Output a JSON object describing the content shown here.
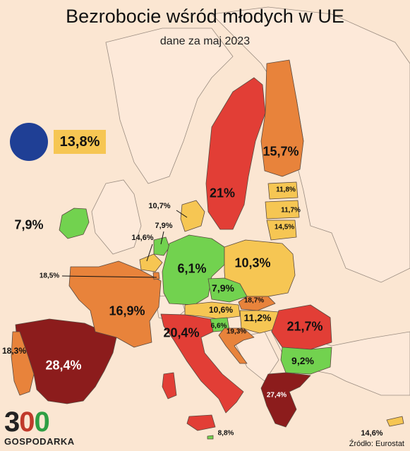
{
  "title": "Bezrobocie wśród młodych w UE",
  "subtitle": "dane za maj 2023",
  "eu": {
    "value": "13,8%"
  },
  "colors": {
    "green": "#72d24f",
    "yellow": "#f6c653",
    "orange": "#e8833b",
    "red": "#e23e36",
    "darkred": "#8c1c1c",
    "non_eu": "#fde9d9",
    "sea": "#fbe6d2",
    "eu_flag": "#1f3f95"
  },
  "countries": [
    {
      "name": "Irlandia",
      "value": "7,9%",
      "color": "green"
    },
    {
      "name": "Hiszpania",
      "value": "28,4%",
      "color": "darkred"
    },
    {
      "name": "Portugalia",
      "value": "18,3%",
      "color": "orange"
    },
    {
      "name": "Francja",
      "value": "16,9%",
      "color": "orange"
    },
    {
      "name": "Niemcy",
      "value": "6,1%",
      "color": "green"
    },
    {
      "name": "Polska",
      "value": "10,3%",
      "color": "yellow"
    },
    {
      "name": "Szwecja",
      "value": "21%",
      "color": "red"
    },
    {
      "name": "Finlandia",
      "value": "15,7%",
      "color": "orange"
    },
    {
      "name": "Dania",
      "value": "10,7%",
      "color": "yellow"
    },
    {
      "name": "Estonia",
      "value": "11,8%",
      "color": "yellow"
    },
    {
      "name": "Łotwa",
      "value": "11,7%",
      "color": "yellow"
    },
    {
      "name": "Litwa",
      "value": "14,5%",
      "color": "yellow"
    },
    {
      "name": "Holandia",
      "value": "7,9%",
      "color": "green"
    },
    {
      "name": "Belgia",
      "value": "14,6%",
      "color": "yellow"
    },
    {
      "name": "Luksemburg",
      "value": "18,5%",
      "color": "orange"
    },
    {
      "name": "Czechy",
      "value": "7,9%",
      "color": "green"
    },
    {
      "name": "Słowacja",
      "value": "18,7%",
      "color": "orange"
    },
    {
      "name": "Austria",
      "value": "10,6%",
      "color": "yellow"
    },
    {
      "name": "Węgry",
      "value": "11,2%",
      "color": "yellow"
    },
    {
      "name": "Rumunia",
      "value": "21,7%",
      "color": "red"
    },
    {
      "name": "Bułgaria",
      "value": "9,2%",
      "color": "green"
    },
    {
      "name": "Grecja",
      "value": "27,4%",
      "color": "darkred"
    },
    {
      "name": "Włochy",
      "value": "20,4%",
      "color": "red"
    },
    {
      "name": "Słowenia",
      "value": "6,6%",
      "color": "green"
    },
    {
      "name": "Chorwacja",
      "value": "19,3%",
      "color": "orange"
    },
    {
      "name": "Malta",
      "value": "8,8%",
      "color": "green"
    },
    {
      "name": "Cypr",
      "value": "14,6%",
      "color": "yellow"
    }
  ],
  "logo": {
    "digits": [
      "3",
      "0",
      "0"
    ],
    "text": "GOSPODARKA"
  },
  "source": "Źródło: Eurostat"
}
